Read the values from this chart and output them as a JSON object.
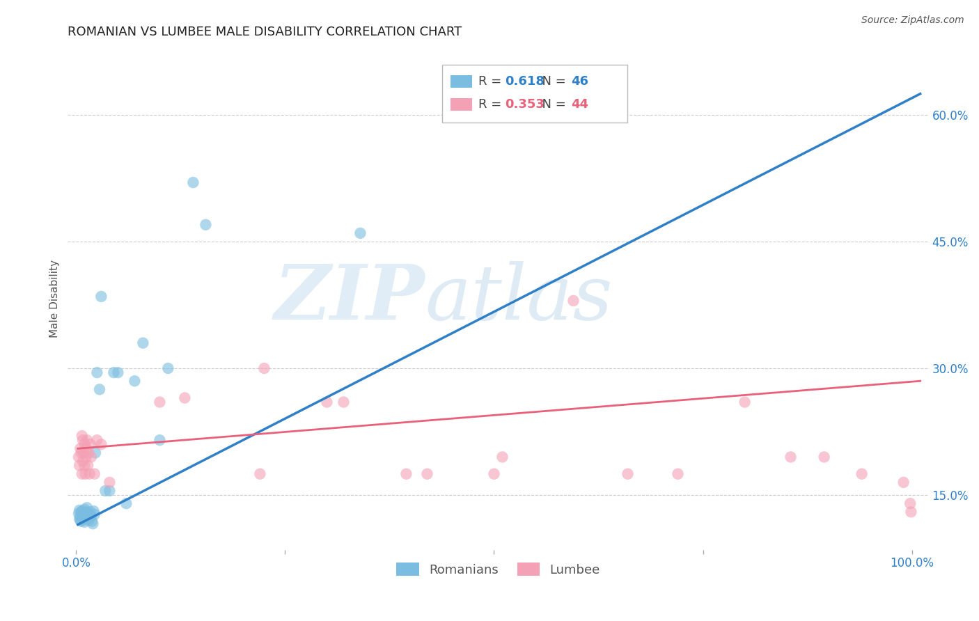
{
  "title": "ROMANIAN VS LUMBEE MALE DISABILITY CORRELATION CHART",
  "source": "Source: ZipAtlas.com",
  "ylabel": "Male Disability",
  "xlabel": "",
  "xlim": [
    -0.01,
    1.02
  ],
  "ylim": [
    0.085,
    0.68
  ],
  "yticks": [
    0.15,
    0.3,
    0.45,
    0.6
  ],
  "ytick_labels": [
    "15.0%",
    "30.0%",
    "45.0%",
    "60.0%"
  ],
  "xticks": [
    0.0,
    0.25,
    0.5,
    0.75,
    1.0
  ],
  "xtick_labels": [
    "0.0%",
    "",
    "",
    "",
    "100.0%"
  ],
  "romanian_R": 0.618,
  "romanian_N": 46,
  "lumbee_R": 0.353,
  "lumbee_N": 44,
  "blue_color": "#7abde0",
  "blue_line_color": "#3080c8",
  "pink_color": "#f4a0b5",
  "pink_line_color": "#e8607a",
  "background_color": "#ffffff",
  "grid_color": "#cccccc",
  "watermark_zip": "ZIP",
  "watermark_atlas": "atlas",
  "title_fontsize": 13,
  "axis_label_fontsize": 11,
  "tick_fontsize": 12,
  "legend_fontsize": 13,
  "ro_line_x0": 0.002,
  "ro_line_x1": 1.01,
  "ro_line_y0": 0.115,
  "ro_line_y1": 0.625,
  "lum_line_x0": 0.002,
  "lum_line_x1": 1.01,
  "lum_line_y0": 0.205,
  "lum_line_y1": 0.285,
  "romanian_x": [
    0.003,
    0.004,
    0.004,
    0.005,
    0.005,
    0.006,
    0.006,
    0.007,
    0.007,
    0.008,
    0.008,
    0.009,
    0.009,
    0.01,
    0.01,
    0.011,
    0.012,
    0.012,
    0.013,
    0.013,
    0.014,
    0.015,
    0.015,
    0.016,
    0.017,
    0.018,
    0.019,
    0.02,
    0.021,
    0.022,
    0.023,
    0.025,
    0.028,
    0.03,
    0.035,
    0.04,
    0.045,
    0.05,
    0.06,
    0.07,
    0.08,
    0.1,
    0.11,
    0.14,
    0.155,
    0.34
  ],
  "romanian_y": [
    0.128,
    0.122,
    0.132,
    0.12,
    0.126,
    0.119,
    0.13,
    0.124,
    0.131,
    0.125,
    0.127,
    0.121,
    0.129,
    0.118,
    0.133,
    0.123,
    0.126,
    0.13,
    0.122,
    0.135,
    0.125,
    0.12,
    0.128,
    0.123,
    0.13,
    0.125,
    0.119,
    0.116,
    0.131,
    0.127,
    0.2,
    0.295,
    0.275,
    0.385,
    0.155,
    0.155,
    0.295,
    0.295,
    0.14,
    0.285,
    0.33,
    0.215,
    0.3,
    0.52,
    0.47,
    0.46
  ],
  "lumbee_x": [
    0.003,
    0.004,
    0.005,
    0.006,
    0.007,
    0.007,
    0.008,
    0.008,
    0.009,
    0.01,
    0.01,
    0.011,
    0.012,
    0.012,
    0.013,
    0.014,
    0.015,
    0.016,
    0.017,
    0.018,
    0.022,
    0.025,
    0.03,
    0.04,
    0.1,
    0.13,
    0.22,
    0.225,
    0.3,
    0.32,
    0.395,
    0.42,
    0.5,
    0.51,
    0.595,
    0.66,
    0.72,
    0.8,
    0.855,
    0.895,
    0.94,
    0.99,
    0.998,
    0.999
  ],
  "lumbee_y": [
    0.195,
    0.185,
    0.205,
    0.2,
    0.175,
    0.22,
    0.19,
    0.215,
    0.2,
    0.185,
    0.21,
    0.175,
    0.205,
    0.195,
    0.215,
    0.185,
    0.2,
    0.175,
    0.21,
    0.195,
    0.175,
    0.215,
    0.21,
    0.165,
    0.26,
    0.265,
    0.175,
    0.3,
    0.26,
    0.26,
    0.175,
    0.175,
    0.175,
    0.195,
    0.38,
    0.175,
    0.175,
    0.26,
    0.195,
    0.195,
    0.175,
    0.165,
    0.14,
    0.13
  ]
}
